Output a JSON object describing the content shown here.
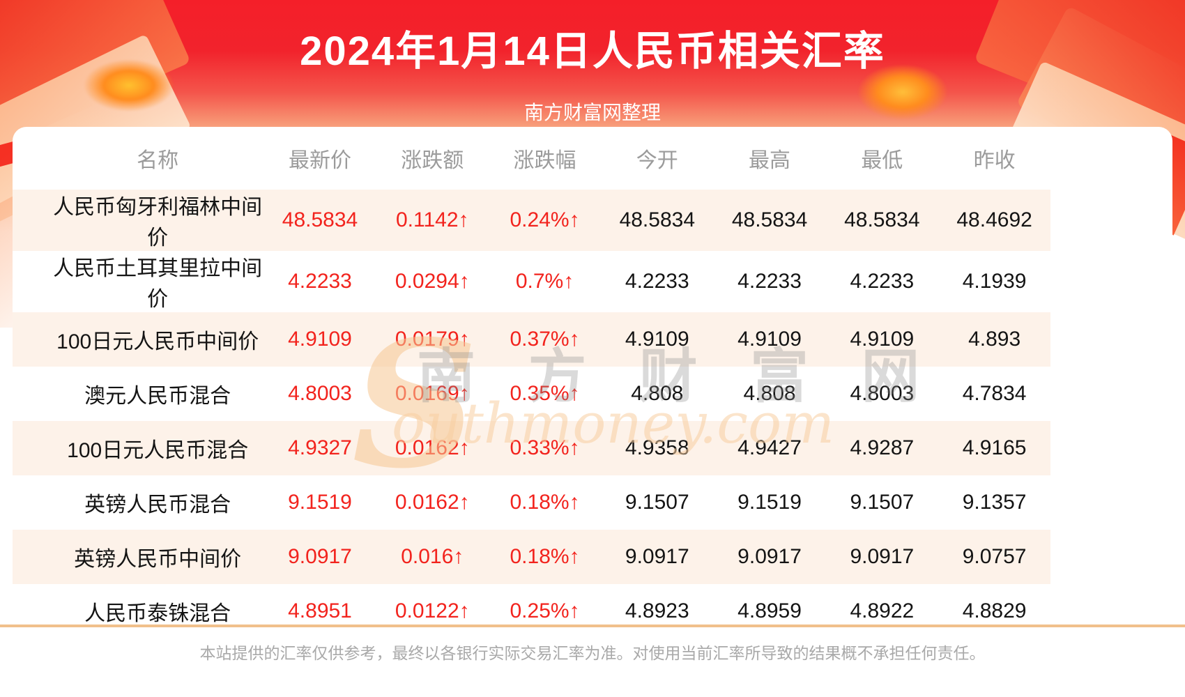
{
  "header": {
    "title": "2024年1月14日人民币相关汇率",
    "subtitle": "南方财富网整理"
  },
  "chart_data": {
    "type": "table",
    "title": "2024年1月14日人民币相关汇率",
    "columns": [
      "名称",
      "最新价",
      "涨跌额",
      "涨跌幅",
      "今开",
      "最高",
      "最低",
      "昨收"
    ],
    "rows": [
      [
        "人民币匈牙利福林中间价",
        "48.5834",
        "0.1142↑",
        "0.24%↑",
        "48.5834",
        "48.5834",
        "48.5834",
        "48.4692"
      ],
      [
        "人民币土耳其里拉中间价",
        "4.2233",
        "0.0294↑",
        "0.7%↑",
        "4.2233",
        "4.2233",
        "4.2233",
        "4.1939"
      ],
      [
        "100日元人民币中间价",
        "4.9109",
        "0.0179↑",
        "0.37%↑",
        "4.9109",
        "4.9109",
        "4.9109",
        "4.893"
      ],
      [
        "澳元人民币混合",
        "4.8003",
        "0.0169↑",
        "0.35%↑",
        "4.808",
        "4.808",
        "4.8003",
        "4.7834"
      ],
      [
        "100日元人民币混合",
        "4.9327",
        "0.0162↑",
        "0.33%↑",
        "4.9358",
        "4.9427",
        "4.9287",
        "4.9165"
      ],
      [
        "英镑人民币混合",
        "9.1519",
        "0.0162↑",
        "0.18%↑",
        "9.1507",
        "9.1519",
        "9.1507",
        "9.1357"
      ],
      [
        "英镑人民币中间价",
        "9.0917",
        "0.016↑",
        "0.18%↑",
        "9.0917",
        "9.0917",
        "9.0917",
        "9.0757"
      ],
      [
        "人民币泰铢混合",
        "4.8951",
        "0.0122↑",
        "0.25%↑",
        "4.8923",
        "4.8959",
        "4.8922",
        "4.8829"
      ]
    ],
    "red_value_columns": [
      1,
      2,
      3
    ],
    "up_symbol": "↑",
    "row_alt_shading": "odd rows shaded"
  },
  "watermark": {
    "initial": "S",
    "chinese": "南 方 财 富 网",
    "english": "outhmoney.com"
  },
  "footer": {
    "disclaimer": "本站提供的汇率仅供参考，最终以各银行实际交易汇率为准。对使用当前汇率所导致的结果概不承担任何责任。"
  },
  "colors": {
    "accent_red": "#f2231d",
    "banner_top": "#f41f29",
    "row_alt": "#fdf2e9",
    "divider": "#f1c08b",
    "header_text_gray": "#9b9b9b"
  }
}
